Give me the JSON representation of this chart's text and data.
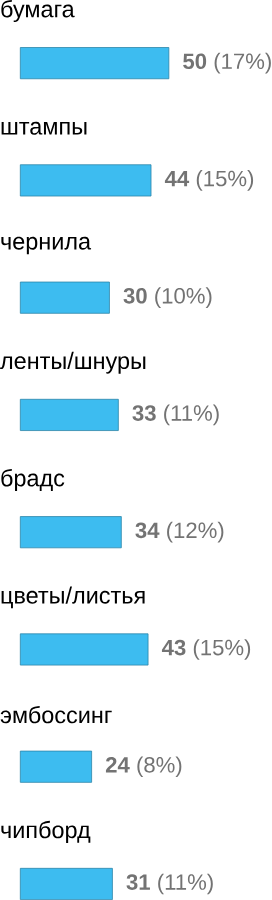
{
  "chart_data": {
    "type": "bar",
    "orientation": "horizontal",
    "color": "#3dbcf0",
    "categories": [
      "бумага",
      "штампы",
      "чернила",
      "ленты/шнуры",
      "брадс",
      "цветы/листья",
      "эмбоссинг",
      "чипборд"
    ],
    "values": [
      50,
      44,
      30,
      33,
      34,
      43,
      24,
      31
    ],
    "value_labels": [
      "**50** (17%)",
      "**44** (15%)",
      "**30** (10%)",
      "**33** (11%)",
      "**34** (12%)",
      "**43** (15%)",
      "**24** (8%)",
      "**31** (11%)"
    ]
  }
}
